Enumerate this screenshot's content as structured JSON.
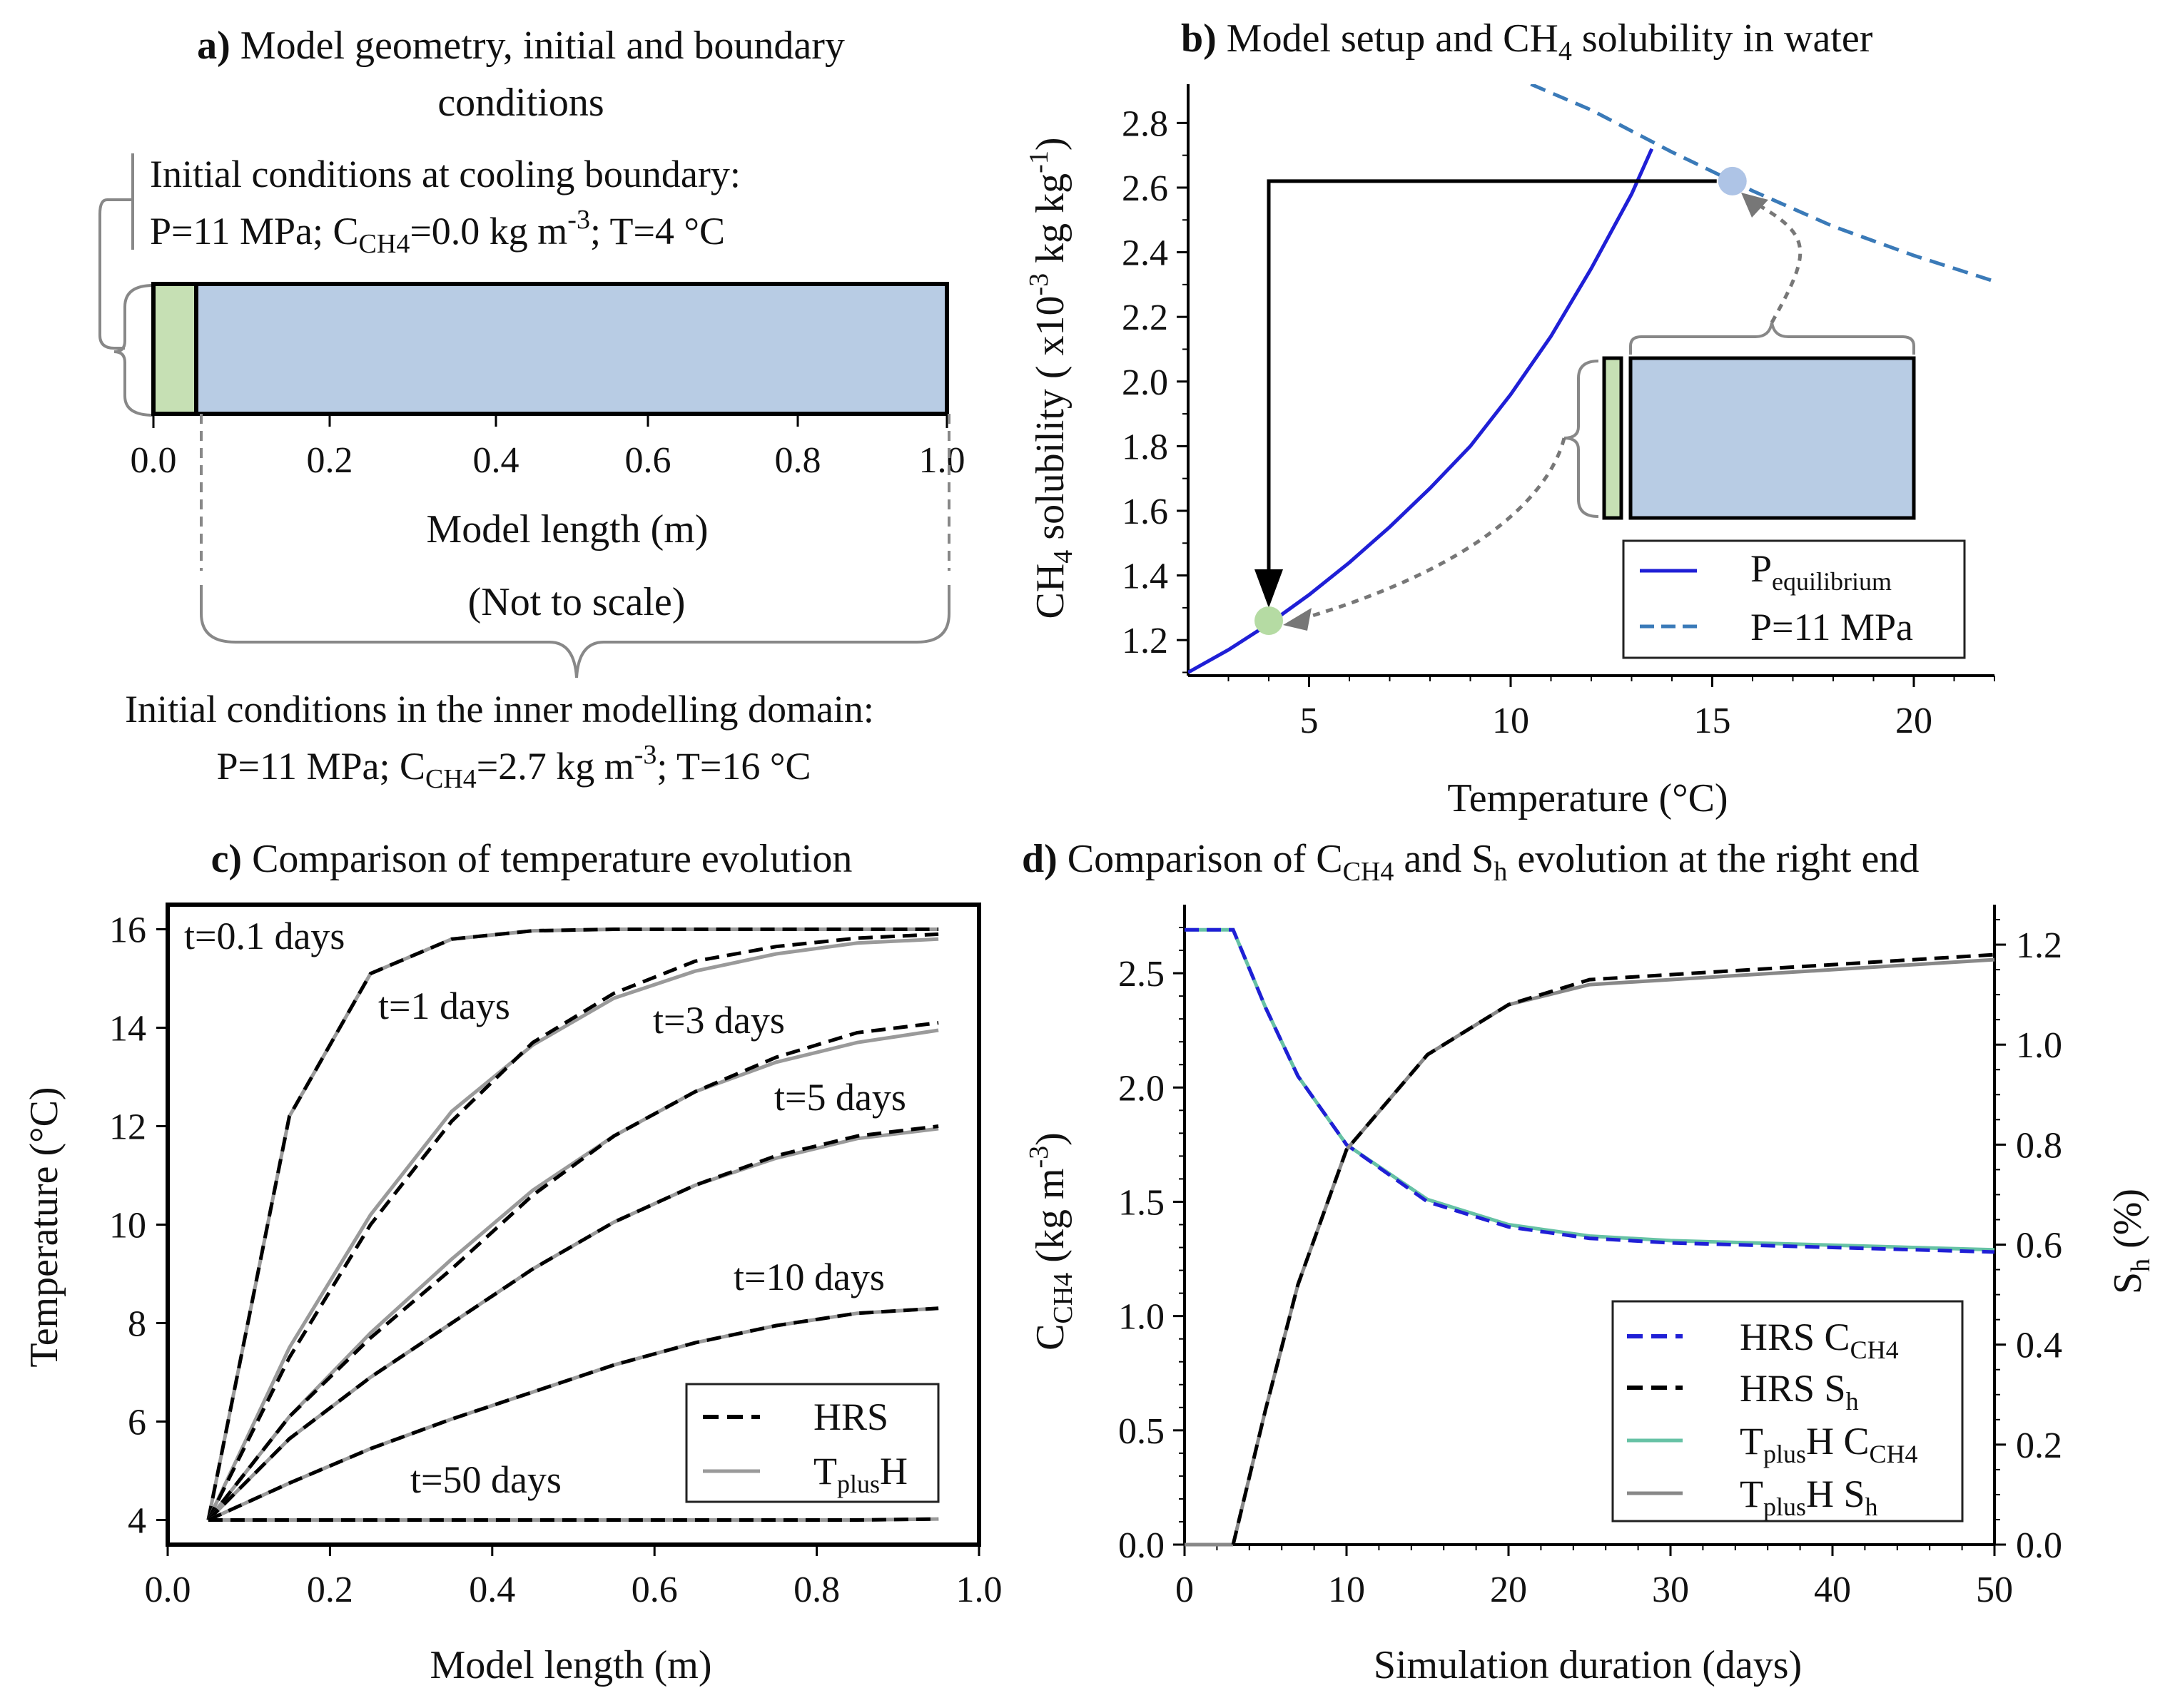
{
  "colors": {
    "green_box": "#c6e0b4",
    "blue_box": "#b8cce4",
    "solid_blue": "#1f1fd6",
    "dashed_blue": "#3a7ab8",
    "hrs_black": "#000000",
    "tplush_grey": "#9a9a9a",
    "tplush_green": "#66c2a5",
    "point_green": "#b5dba3",
    "point_blue": "#aec4e6",
    "arrow_grey": "#777777"
  },
  "panel_a": {
    "label": "a)",
    "title_line1": "Model geometry, initial and boundary",
    "title_line2": "conditions",
    "cooling_line1": "Initial conditions at cooling boundary:",
    "cooling_line2_parts": [
      "P=11 MPa; C",
      "CH4",
      "=0.0 kg m",
      "-3",
      "; T=4 °C"
    ],
    "inner_line1": "Initial conditions in the inner modelling domain:",
    "inner_line2_parts": [
      "P=11 MPa; C",
      "CH4",
      "=2.7 kg m",
      "-3",
      "; T=16 °C"
    ],
    "xlabel": "Model length (m)",
    "not_to_scale": "(Not to scale)",
    "ticks": [
      "0.0",
      "0.2",
      "0.4",
      "0.6",
      "0.8",
      "1.0"
    ]
  },
  "chart_data": [
    {
      "panel": "b",
      "type": "line",
      "label": "b)",
      "title_parts": [
        "Model setup and CH",
        "4",
        " solubility in water"
      ],
      "xlabel": "Temperature (°C)",
      "ylabel_parts": [
        "CH",
        "4",
        " solubility ( x10",
        "-3",
        "  kg kg",
        "-1",
        ")"
      ],
      "xlim": [
        2,
        22
      ],
      "ylim": [
        1.09,
        2.92
      ],
      "xticks": [
        5,
        10,
        15,
        20
      ],
      "yticks": [
        1.2,
        1.4,
        1.6,
        1.8,
        2.0,
        2.2,
        2.4,
        2.6,
        2.8
      ],
      "series": [
        {
          "name": "P equilibrium",
          "legend_parts": [
            "P",
            "equilibrium"
          ],
          "style": "solid",
          "x": [
            2.0,
            3.0,
            4.0,
            5.0,
            6.0,
            7.0,
            8.0,
            9.0,
            10.0,
            11.0,
            12.0,
            13.0,
            13.5
          ],
          "y": [
            1.1,
            1.17,
            1.25,
            1.34,
            1.44,
            1.55,
            1.67,
            1.8,
            1.96,
            2.14,
            2.35,
            2.58,
            2.72
          ]
        },
        {
          "name": "P=11 MPa",
          "legend_parts": [
            "P=11 MPa"
          ],
          "style": "dashed",
          "x": [
            10.5,
            12.0,
            14.0,
            16.0,
            18.0,
            20.0,
            22.0
          ],
          "y": [
            2.92,
            2.84,
            2.71,
            2.59,
            2.48,
            2.39,
            2.31
          ]
        }
      ],
      "markers": [
        {
          "name": "boundary-point",
          "x": 4.0,
          "y": 1.26
        },
        {
          "name": "inner-point",
          "x": 15.5,
          "y": 2.62
        }
      ]
    },
    {
      "panel": "c",
      "type": "line",
      "label": "c)",
      "title": "Comparison of temperature evolution",
      "xlabel": "Model length (m)",
      "ylabel": "Temperature (°C)",
      "xlim": [
        0.0,
        1.0
      ],
      "ylim": [
        3.5,
        16.5
      ],
      "xticks": [
        0.0,
        0.2,
        0.4,
        0.6,
        0.8,
        1.0
      ],
      "xtick_labels": [
        "0.0",
        "0.2",
        "0.4",
        "0.6",
        "0.8",
        "1.0"
      ],
      "yticks": [
        4,
        6,
        8,
        10,
        12,
        14,
        16
      ],
      "x": [
        0.05,
        0.15,
        0.25,
        0.35,
        0.45,
        0.55,
        0.65,
        0.75,
        0.85,
        0.95
      ],
      "series": [
        {
          "name": "t=0.1 days",
          "hrs": [
            4,
            12.2,
            15.1,
            15.8,
            15.97,
            16.0,
            16.0,
            16.0,
            16.0,
            16.0
          ],
          "tplush": [
            4,
            12.2,
            15.1,
            15.8,
            15.97,
            16.0,
            16.0,
            16.0,
            16.0,
            16.0
          ]
        },
        {
          "name": "t=1 days",
          "hrs": [
            4,
            7.3,
            10.0,
            12.1,
            13.7,
            14.7,
            15.35,
            15.65,
            15.82,
            15.9
          ],
          "tplush": [
            4,
            7.5,
            10.2,
            12.3,
            13.65,
            14.6,
            15.15,
            15.5,
            15.72,
            15.8
          ]
        },
        {
          "name": "t=3 days",
          "hrs": [
            4,
            6.1,
            7.7,
            9.1,
            10.6,
            11.8,
            12.7,
            13.4,
            13.9,
            14.1
          ],
          "tplush": [
            4,
            6.1,
            7.8,
            9.3,
            10.7,
            11.8,
            12.7,
            13.3,
            13.7,
            13.95
          ]
        },
        {
          "name": "t=5 days",
          "hrs": [
            4,
            5.65,
            6.9,
            8.0,
            9.1,
            10.05,
            10.8,
            11.4,
            11.8,
            12.0
          ],
          "tplush": [
            4,
            5.65,
            6.9,
            8.0,
            9.1,
            10.05,
            10.8,
            11.35,
            11.75,
            11.95
          ]
        },
        {
          "name": "t=10 days",
          "hrs": [
            4,
            4.75,
            5.45,
            6.05,
            6.6,
            7.15,
            7.6,
            7.95,
            8.2,
            8.3
          ],
          "tplush": [
            4,
            4.75,
            5.45,
            6.05,
            6.6,
            7.15,
            7.6,
            7.95,
            8.2,
            8.3
          ]
        },
        {
          "name": "t=50 days",
          "hrs": [
            4,
            4.0,
            4.0,
            4.0,
            4.0,
            4.0,
            4.0,
            4.0,
            4.0,
            4.02
          ],
          "tplush": [
            4,
            4.0,
            4.0,
            4.0,
            4.0,
            4.0,
            4.0,
            4.0,
            4.0,
            4.02
          ]
        }
      ],
      "labels": [
        "t=0.1 days",
        "t=1 days",
        "t=3 days",
        "t=5 days",
        "t=10 days",
        "t=50 days"
      ],
      "legend": [
        "HRS",
        "T",
        "plus",
        "H"
      ]
    },
    {
      "panel": "d",
      "type": "line",
      "label": "d)",
      "title_parts": [
        "Comparison of C",
        "CH4",
        " and S",
        "h",
        " evolution at the right end"
      ],
      "xlabel": "Simulation duration (days)",
      "ylabel_left_parts": [
        "C",
        "CH4",
        "  (kg m",
        "-3",
        ")"
      ],
      "ylabel_right_parts": [
        "S",
        "h",
        " (%)"
      ],
      "xlim": [
        0,
        50
      ],
      "ylim_left": [
        0.0,
        2.8
      ],
      "ylim_right": [
        0.0,
        1.28
      ],
      "xticks": [
        0,
        10,
        20,
        30,
        40,
        50
      ],
      "yticks_left": [
        0.0,
        0.5,
        1.0,
        1.5,
        2.0,
        2.5
      ],
      "yticks_left_labels": [
        "0.0",
        "0.5",
        "1.0",
        "1.5",
        "2.0",
        "2.5"
      ],
      "yticks_right": [
        0.0,
        0.2,
        0.4,
        0.6,
        0.8,
        1.0,
        1.2
      ],
      "yticks_right_labels": [
        "0.0",
        "0.2",
        "0.4",
        "0.6",
        "0.8",
        "1.0",
        "1.2"
      ],
      "c_series": {
        "x": [
          0,
          3,
          5,
          7,
          10,
          15,
          20,
          25,
          30,
          40,
          50
        ],
        "hrs": [
          2.69,
          2.69,
          2.35,
          2.05,
          1.75,
          1.5,
          1.39,
          1.34,
          1.32,
          1.3,
          1.28
        ],
        "tplush": [
          2.69,
          2.69,
          2.35,
          2.05,
          1.75,
          1.51,
          1.4,
          1.35,
          1.33,
          1.31,
          1.29
        ]
      },
      "s_series": {
        "x": [
          3,
          5,
          7,
          10,
          15,
          20,
          25,
          30,
          40,
          50
        ],
        "hrs": [
          0.0,
          0.27,
          0.52,
          0.79,
          0.98,
          1.08,
          1.13,
          1.14,
          1.16,
          1.18
        ],
        "tplush": [
          0.0,
          0.27,
          0.52,
          0.79,
          0.98,
          1.08,
          1.12,
          1.13,
          1.15,
          1.17
        ]
      },
      "legend": [
        {
          "parts": [
            "HRS C",
            "CH4"
          ],
          "kind": "hrs-c"
        },
        {
          "parts": [
            "HRS S",
            "h"
          ],
          "kind": "hrs-s"
        },
        {
          "parts": [
            "T",
            "plus",
            "H C",
            "CH4"
          ],
          "kind": "tp-c"
        },
        {
          "parts": [
            "T",
            "plus",
            "H S",
            "h"
          ],
          "kind": "tp-s"
        }
      ]
    }
  ]
}
